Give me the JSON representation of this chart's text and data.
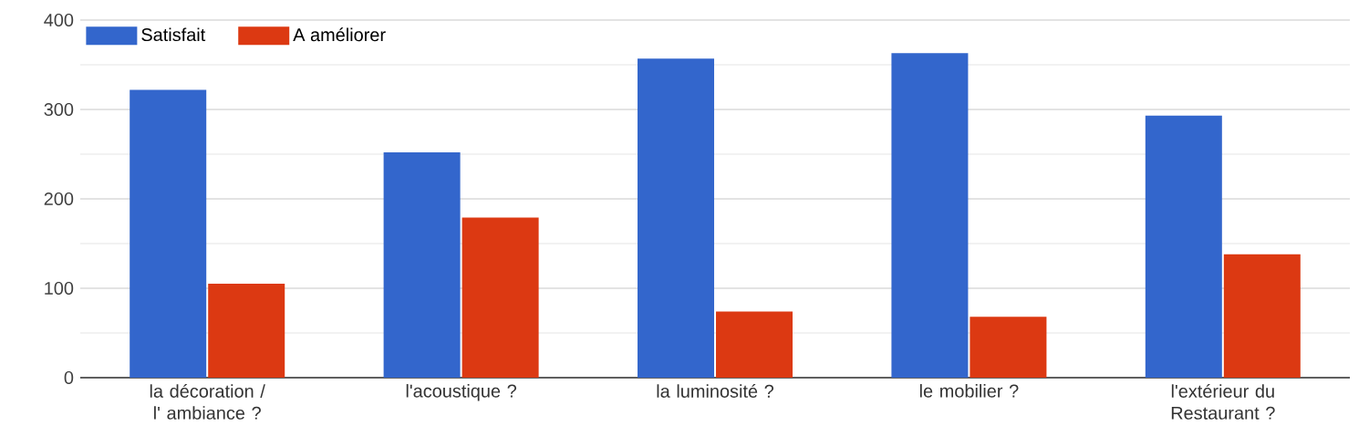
{
  "chart_data": {
    "type": "bar",
    "categories": [
      "la décoration / l' ambiance ?",
      "l'acoustique ?",
      "la luminosité ?",
      "le mobilier ?",
      "l'extérieur du Restaurant ?"
    ],
    "series": [
      {
        "name": "Satisfait",
        "color": "#3366cc",
        "values": [
          322,
          252,
          357,
          363,
          293
        ]
      },
      {
        "name": "A améliorer",
        "color": "#dc3912",
        "values": [
          105,
          179,
          74,
          68,
          138
        ]
      }
    ],
    "ylim": [
      0,
      400
    ],
    "yticks": [
      0,
      100,
      200,
      300,
      400
    ],
    "grid": "y",
    "legend": "top left"
  }
}
